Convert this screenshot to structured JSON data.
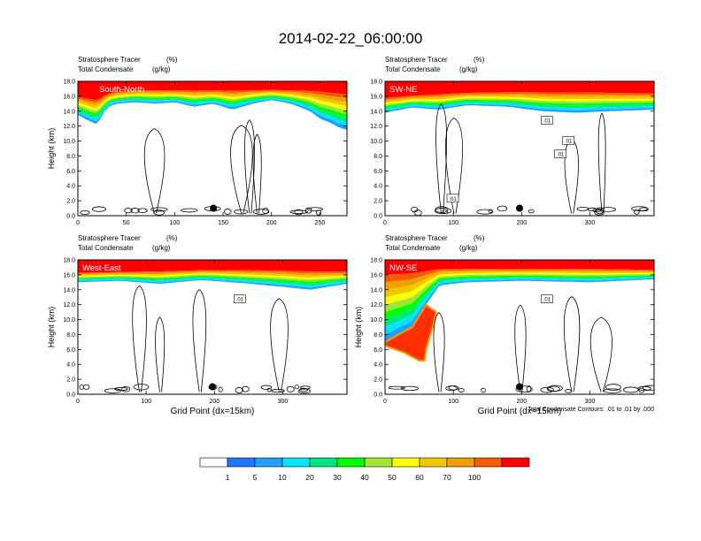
{
  "page": {
    "title": "2014-02-22_06:00:00"
  },
  "chart_data": [
    {
      "type": "heatmap",
      "panel_label": "South-North",
      "title_left_1": "Stratosphere Tracer",
      "title_right_1": "(%)",
      "title_left_2": "Total Condensate",
      "title_right_2": "(g/kg)",
      "ylabel": "Height (km)",
      "xlabel": "",
      "xlim": [
        0,
        278
      ],
      "ylim": [
        0,
        18
      ],
      "xticks": [
        0,
        50,
        100,
        150,
        200,
        250
      ],
      "yticks": [
        0.0,
        2.0,
        4.0,
        6.0,
        8.0,
        10.0,
        12.0,
        14.0,
        16.0,
        18.0
      ],
      "marker": {
        "x": 140,
        "y": 1.0
      },
      "tracer_fill": {
        "red_top": [
          [
            0,
            16.2
          ],
          [
            10,
            16.0
          ],
          [
            20,
            15.8
          ],
          [
            30,
            16.5
          ],
          [
            40,
            16.8
          ],
          [
            60,
            17.0
          ],
          [
            100,
            17.0
          ],
          [
            150,
            17.0
          ],
          [
            200,
            17.0
          ],
          [
            250,
            17.0
          ],
          [
            278,
            16.8
          ]
        ],
        "green_base": [
          [
            0,
            13.5
          ],
          [
            10,
            12.8
          ],
          [
            20,
            12.2
          ],
          [
            30,
            14.5
          ],
          [
            40,
            15.0
          ],
          [
            60,
            15.2
          ],
          [
            80,
            15.0
          ],
          [
            100,
            15.2
          ],
          [
            120,
            14.6
          ],
          [
            140,
            15.0
          ],
          [
            160,
            14.2
          ],
          [
            180,
            15.0
          ],
          [
            200,
            15.5
          ],
          [
            220,
            15.0
          ],
          [
            240,
            14.0
          ],
          [
            250,
            13.0
          ],
          [
            260,
            12.5
          ],
          [
            270,
            11.8
          ],
          [
            278,
            11.5
          ]
        ]
      },
      "cloud_contours": "0.01 g/kg outlines, cumulus near 0–1 km and deep convection near x 25–40"
    },
    {
      "type": "heatmap",
      "panel_label": "SW-NE",
      "title_left_1": "Stratosphere Tracer",
      "title_right_1": "(%)",
      "title_left_2": "Total Condensate",
      "title_right_2": "(g/kg)",
      "ylabel": "",
      "xlabel": "",
      "xlim": [
        0,
        394
      ],
      "ylim": [
        0,
        18
      ],
      "xticks": [
        0,
        100,
        200,
        300
      ],
      "yticks": [
        0.0,
        2.0,
        4.0,
        6.0,
        8.0,
        10.0,
        12.0,
        14.0,
        16.0,
        18.0
      ],
      "marker": {
        "x": 197,
        "y": 1.0
      },
      "contour_labels": [
        ".01",
        ".01",
        ".01",
        ".01"
      ],
      "tracer_fill": {
        "red_top": [
          [
            0,
            16.0
          ],
          [
            50,
            16.3
          ],
          [
            100,
            16.6
          ],
          [
            200,
            16.8
          ],
          [
            300,
            16.8
          ],
          [
            394,
            16.6
          ]
        ],
        "green_base": [
          [
            0,
            13.8
          ],
          [
            40,
            14.5
          ],
          [
            80,
            14.2
          ],
          [
            120,
            14.8
          ],
          [
            180,
            14.6
          ],
          [
            230,
            14.0
          ],
          [
            280,
            13.8
          ],
          [
            330,
            14.0
          ],
          [
            394,
            14.2
          ]
        ]
      }
    },
    {
      "type": "heatmap",
      "panel_label": "West-East",
      "title_left_1": "Stratosphere Tracer",
      "title_right_1": "(%)",
      "title_left_2": "Total Condensate",
      "title_right_2": "(g/kg)",
      "ylabel": "Height (km)",
      "xlabel": "Grid Point (dx=15km)",
      "xlim": [
        0,
        394
      ],
      "ylim": [
        0,
        18
      ],
      "xticks": [
        0,
        100,
        200,
        300
      ],
      "yticks": [
        0.0,
        2.0,
        4.0,
        6.0,
        8.0,
        10.0,
        12.0,
        14.0,
        16.0,
        18.0
      ],
      "marker": {
        "x": 197,
        "y": 1.0
      },
      "contour_labels": [
        ".01"
      ],
      "tracer_fill": {
        "red_top": [
          [
            0,
            16.4
          ],
          [
            100,
            16.6
          ],
          [
            200,
            16.8
          ],
          [
            300,
            16.8
          ],
          [
            394,
            16.6
          ]
        ],
        "green_base": [
          [
            0,
            15.0
          ],
          [
            60,
            15.2
          ],
          [
            120,
            14.8
          ],
          [
            180,
            15.3
          ],
          [
            240,
            14.9
          ],
          [
            300,
            14.4
          ],
          [
            340,
            14.0
          ],
          [
            394,
            14.8
          ]
        ]
      }
    },
    {
      "type": "heatmap",
      "panel_label": "NW-SE",
      "title_left_1": "Stratosphere Tracer",
      "title_right_1": "(%)",
      "title_left_2": "Total Condensate",
      "title_right_2": "(g/kg)",
      "ylabel": "Height (km)",
      "xlabel": "Grid Point (dx=15km)",
      "xlim": [
        0,
        394
      ],
      "ylim": [
        0,
        18
      ],
      "xticks": [
        0,
        100,
        200,
        300
      ],
      "yticks": [
        0.0,
        2.0,
        4.0,
        6.0,
        8.0,
        10.0,
        12.0,
        14.0,
        16.0,
        18.0
      ],
      "marker": {
        "x": 197,
        "y": 1.0
      },
      "contour_labels": [
        ".01"
      ],
      "footnote": "Total Condensate Contours: .01 to .01 by .000",
      "tracer_fill": {
        "red_top": [
          [
            0,
            17.0
          ],
          [
            100,
            17.0
          ],
          [
            200,
            17.0
          ],
          [
            300,
            17.0
          ],
          [
            394,
            16.8
          ]
        ],
        "fold_profile": [
          [
            0,
            7.0
          ],
          [
            20,
            8.0
          ],
          [
            40,
            9.0
          ],
          [
            60,
            12.0
          ],
          [
            80,
            14.6
          ],
          [
            120,
            15.0
          ],
          [
            200,
            15.2
          ],
          [
            300,
            15.0
          ],
          [
            394,
            15.4
          ]
        ],
        "fold_tip": [
          [
            0,
            6.5
          ],
          [
            30,
            5.5
          ],
          [
            50,
            4.5
          ],
          [
            58,
            4.5
          ],
          [
            60,
            6.0
          ],
          [
            70,
            9.0
          ],
          [
            75,
            11.0
          ]
        ]
      }
    }
  ],
  "colorbar": {
    "labels": [
      "1",
      "5",
      "10",
      "20",
      "30",
      "40",
      "50",
      "60",
      "70",
      "100"
    ],
    "colors": [
      "#ffffff",
      "#1e78ff",
      "#1fa0ff",
      "#00e6ff",
      "#00e682",
      "#00ff00",
      "#a0e632",
      "#ffff00",
      "#f0c800",
      "#f0a000",
      "#fa5a00",
      "#ff0000"
    ]
  }
}
